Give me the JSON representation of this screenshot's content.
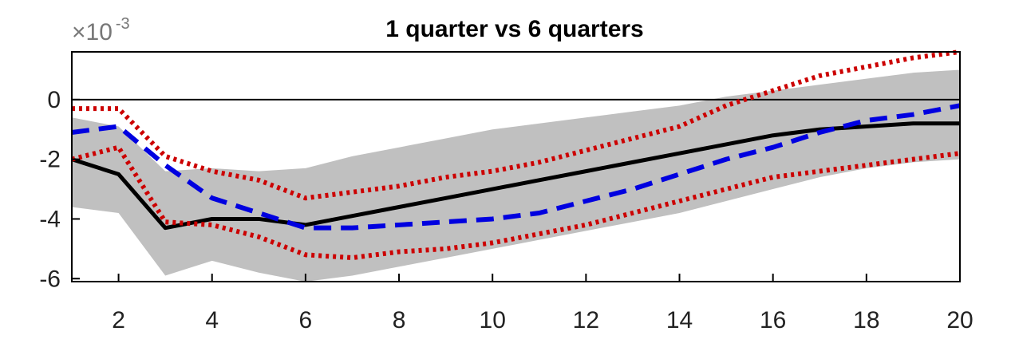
{
  "chart_data": {
    "type": "line",
    "title": "1 quarter vs 6 quarters",
    "y_exponent_base": "×10",
    "y_exponent_power": "-3",
    "xlim": [
      1,
      20
    ],
    "ylim": [
      -6.1,
      1.6
    ],
    "x_ticks": [
      2,
      4,
      6,
      8,
      10,
      12,
      14,
      16,
      18,
      20
    ],
    "y_ticks": [
      0,
      -2,
      -4,
      -6
    ],
    "zero_line": true,
    "grid": false,
    "x": [
      1,
      2,
      3,
      4,
      5,
      6,
      7,
      8,
      9,
      10,
      11,
      12,
      13,
      14,
      15,
      16,
      17,
      18,
      19,
      20
    ],
    "band": {
      "color": "#c0c0c0",
      "lower": [
        -3.6,
        -3.8,
        -5.9,
        -5.4,
        -5.8,
        -6.1,
        -5.9,
        -5.6,
        -5.3,
        -5.0,
        -4.7,
        -4.4,
        -4.1,
        -3.8,
        -3.4,
        -3.0,
        -2.6,
        -2.3,
        -2.1,
        -2.0
      ],
      "upper": [
        -0.6,
        -0.9,
        -2.4,
        -2.3,
        -2.4,
        -2.3,
        -1.9,
        -1.6,
        -1.3,
        -1.0,
        -0.8,
        -0.6,
        -0.4,
        -0.2,
        0.1,
        0.3,
        0.5,
        0.7,
        0.9,
        1.0
      ]
    },
    "series": [
      {
        "style": "solid",
        "color": "#000000",
        "values": [
          -2.0,
          -2.5,
          -4.3,
          -4.0,
          -4.0,
          -4.2,
          -3.9,
          -3.6,
          -3.3,
          -3.0,
          -2.7,
          -2.4,
          -2.1,
          -1.8,
          -1.5,
          -1.2,
          -1.0,
          -0.9,
          -0.8,
          -0.8
        ]
      },
      {
        "style": "dashed",
        "color": "#0000e0",
        "values": [
          -1.1,
          -0.9,
          -2.2,
          -3.3,
          -3.8,
          -4.3,
          -4.3,
          -4.2,
          -4.1,
          -4.0,
          -3.8,
          -3.4,
          -3.0,
          -2.5,
          -2.0,
          -1.6,
          -1.1,
          -0.7,
          -0.5,
          -0.2
        ]
      },
      {
        "style": "dotted",
        "color": "#cc0000",
        "values": [
          -0.3,
          -0.3,
          -1.9,
          -2.4,
          -2.7,
          -3.3,
          -3.1,
          -2.9,
          -2.6,
          -2.4,
          -2.1,
          -1.7,
          -1.3,
          -0.9,
          -0.2,
          0.3,
          0.8,
          1.1,
          1.4,
          1.6
        ]
      },
      {
        "style": "dotted",
        "color": "#cc0000",
        "values": [
          -2.0,
          -1.6,
          -4.1,
          -4.2,
          -4.6,
          -5.2,
          -5.3,
          -5.1,
          -5.0,
          -4.8,
          -4.5,
          -4.2,
          -3.8,
          -3.4,
          -3.0,
          -2.6,
          -2.4,
          -2.2,
          -2.0,
          -1.8
        ]
      }
    ]
  }
}
